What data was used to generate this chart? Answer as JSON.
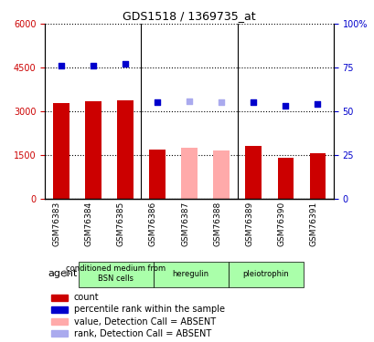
{
  "title": "GDS1518 / 1369735_at",
  "samples": [
    "GSM76383",
    "GSM76384",
    "GSM76385",
    "GSM76386",
    "GSM76387",
    "GSM76388",
    "GSM76389",
    "GSM76390",
    "GSM76391"
  ],
  "counts": [
    3300,
    3350,
    3380,
    1700,
    1750,
    1650,
    1800,
    1400,
    1550
  ],
  "absent_counts": [
    null,
    null,
    null,
    null,
    1750,
    1650,
    null,
    null,
    null
  ],
  "percentile_ranks": [
    76,
    76,
    77,
    55,
    null,
    null,
    55,
    53,
    54
  ],
  "absent_ranks": [
    null,
    null,
    null,
    null,
    56,
    55,
    null,
    null,
    null
  ],
  "ylim_left": [
    0,
    6000
  ],
  "ylim_right": [
    0,
    100
  ],
  "yticks_left": [
    0,
    1500,
    3000,
    4500,
    6000
  ],
  "ytick_labels_left": [
    "0",
    "1500",
    "3000",
    "4500",
    "6000"
  ],
  "yticks_right": [
    0,
    25,
    50,
    75,
    100
  ],
  "ytick_labels_right": [
    "0",
    "25",
    "50",
    "75",
    "100%"
  ],
  "bar_color": "#cc0000",
  "absent_bar_color": "#ffaaaa",
  "dot_color": "#0000cc",
  "absent_dot_color": "#aaaaee",
  "groups": [
    {
      "label": "conditioned medium from\nBSN cells",
      "start": 0,
      "end": 3,
      "color": "#aaffaa"
    },
    {
      "label": "heregulin",
      "start": 3,
      "end": 6,
      "color": "#aaffaa"
    },
    {
      "label": "pleiotrophin",
      "start": 6,
      "end": 9,
      "color": "#aaffaa"
    }
  ],
  "agent_label": "agent",
  "legend_items": [
    {
      "color": "#cc0000",
      "label": "count"
    },
    {
      "color": "#0000cc",
      "label": "percentile rank within the sample"
    },
    {
      "color": "#ffaaaa",
      "label": "value, Detection Call = ABSENT"
    },
    {
      "color": "#aaaaee",
      "label": "rank, Detection Call = ABSENT"
    }
  ],
  "grid_color": "#000000",
  "background_color": "#ffffff"
}
